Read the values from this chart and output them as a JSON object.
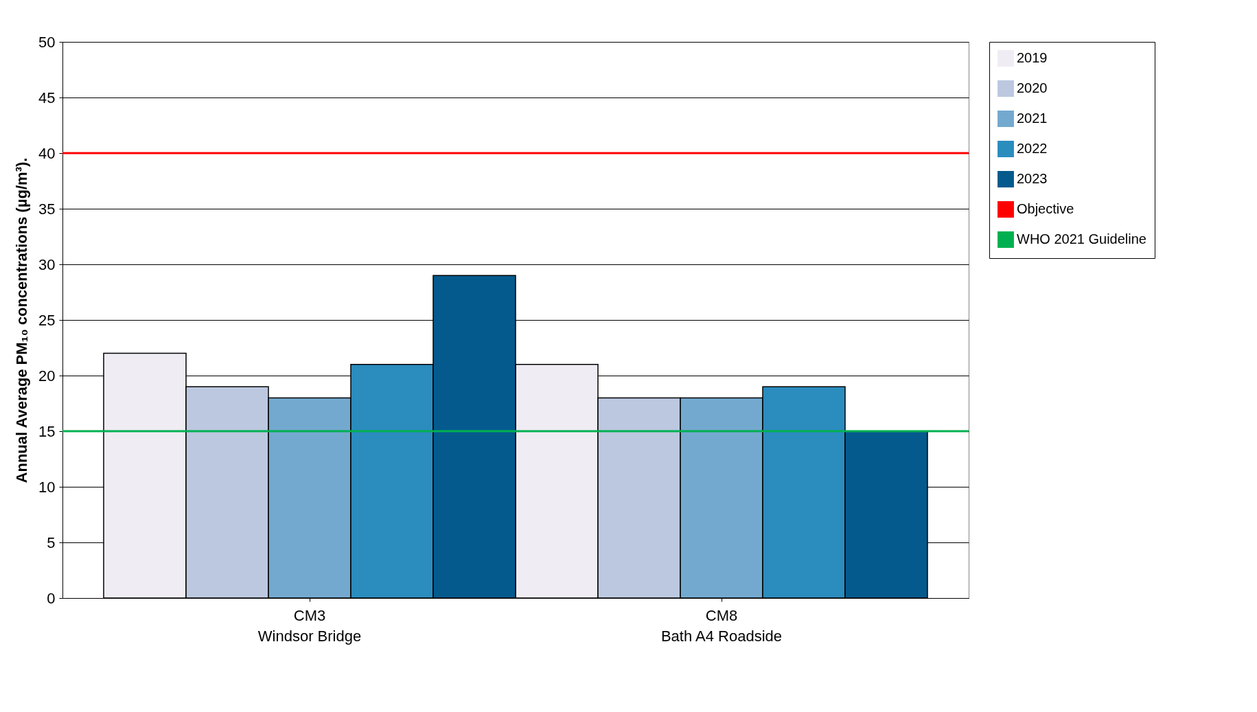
{
  "chart_data": {
    "type": "bar",
    "ylabel": "Annual Average PM₁₀ concentrations (µg/m³).",
    "categories": [
      "CM3\nWindsor Bridge",
      "CM8\nBath A4 Roadside"
    ],
    "series": [
      {
        "name": "2019",
        "color": "#f0ecf4",
        "values": [
          22,
          21
        ]
      },
      {
        "name": "2020",
        "color": "#bcc8e0",
        "values": [
          19,
          18
        ]
      },
      {
        "name": "2021",
        "color": "#74a9cf",
        "values": [
          18,
          18
        ]
      },
      {
        "name": "2022",
        "color": "#2b8cbe",
        "values": [
          21,
          19
        ]
      },
      {
        "name": "2023",
        "color": "#045a8d",
        "values": [
          29,
          15
        ]
      }
    ],
    "ref_lines": [
      {
        "axis": "y",
        "value": 40,
        "label": "Objective",
        "color": "#ff0000"
      },
      {
        "axis": "y",
        "value": 15,
        "label": "WHO 2021 Guideline",
        "color": "#00b050"
      }
    ],
    "ylim": [
      0,
      50
    ],
    "yticks": [
      0,
      5,
      10,
      15,
      20,
      25,
      30,
      35,
      40,
      45,
      50
    ],
    "grid": "y",
    "legend": "right"
  }
}
